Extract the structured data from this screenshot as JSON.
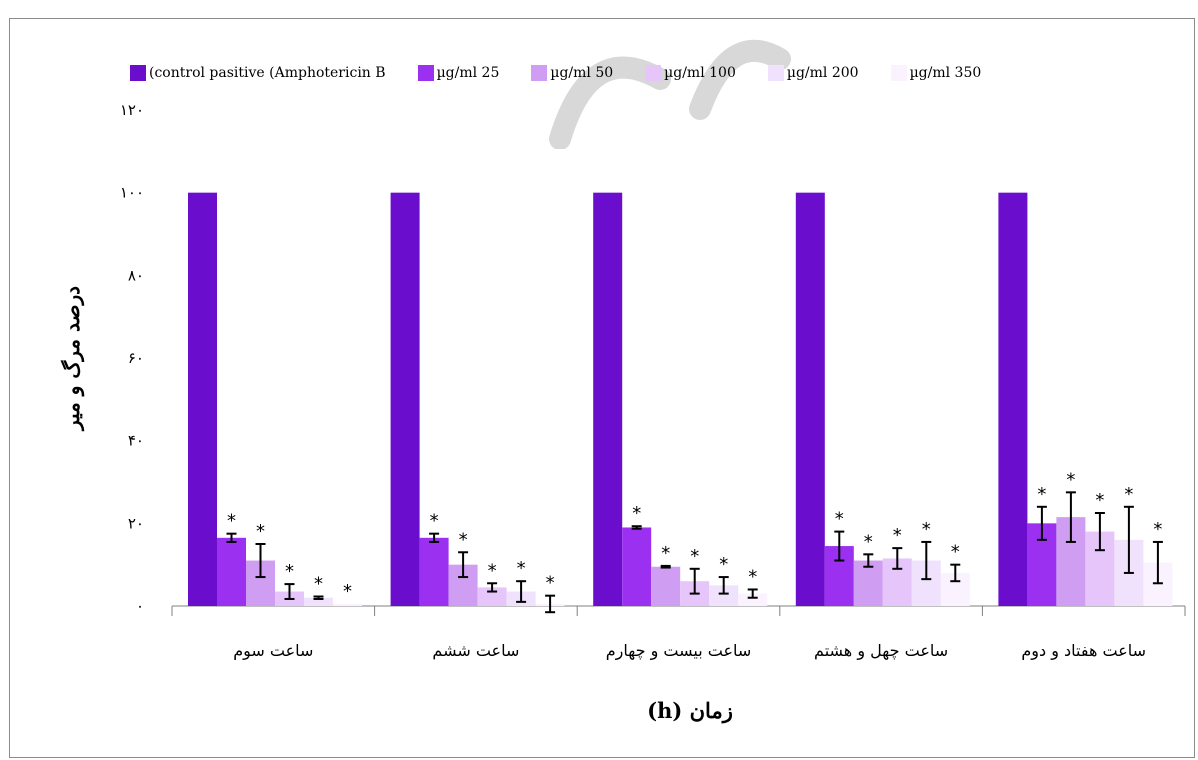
{
  "chart_data": {
    "type": "bar",
    "ylabel": "درصد مرگ و میر",
    "xlabel": "زمان (h)",
    "ylim": [
      0,
      120
    ],
    "yticks": [
      "۰",
      "۲۰",
      "۴۰",
      "۶۰",
      "۸۰",
      "۱۰۰",
      "۱۲۰"
    ],
    "ytick_values": [
      0,
      20,
      40,
      60,
      80,
      100,
      120
    ],
    "categories": [
      "ساعت سوم",
      "ساعت ششم",
      "ساعت بیست و چهارم",
      "ساعت چهل و هشتم",
      "ساعت هفتاد و دوم"
    ],
    "legend_position": "top",
    "significance_marker": "*",
    "series": [
      {
        "name": "(control pasitive (Amphotericin B",
        "color": "#6a0dcc",
        "values": [
          100,
          100,
          100,
          100,
          100
        ],
        "errors": [
          0,
          0,
          0,
          0,
          0
        ],
        "significant": [
          false,
          false,
          false,
          false,
          false
        ]
      },
      {
        "name": "µg/ml 25",
        "color": "#9b30f0",
        "values": [
          16.5,
          16.5,
          19,
          14.5,
          20
        ],
        "errors": [
          1,
          1,
          0.3,
          3.5,
          4
        ],
        "significant": [
          true,
          true,
          true,
          true,
          true
        ]
      },
      {
        "name": "µg/ml 50",
        "color": "#cf9ef2",
        "values": [
          11,
          10,
          9.5,
          11,
          21.5
        ],
        "errors": [
          4,
          3,
          0.2,
          1.5,
          6
        ],
        "significant": [
          true,
          true,
          true,
          true,
          true
        ]
      },
      {
        "name": "µg/ml 100",
        "color": "#e6c6fa",
        "values": [
          3.5,
          4.5,
          6,
          11.5,
          18
        ],
        "errors": [
          1.8,
          1,
          3,
          2.5,
          4.5
        ],
        "significant": [
          true,
          true,
          true,
          true,
          true
        ]
      },
      {
        "name": "µg/ml 200",
        "color": "#f0e2fc",
        "values": [
          2,
          3.5,
          5,
          11,
          16
        ],
        "errors": [
          0.3,
          2.5,
          2,
          4.5,
          8
        ],
        "significant": [
          true,
          true,
          true,
          true,
          true
        ]
      },
      {
        "name": "µg/ml 350",
        "color": "#faf2fe",
        "values": [
          0.5,
          0.5,
          3,
          8,
          10.5
        ],
        "errors": [
          0,
          2,
          1,
          2,
          5
        ],
        "significant": [
          true,
          true,
          true,
          true,
          true
        ]
      }
    ]
  }
}
